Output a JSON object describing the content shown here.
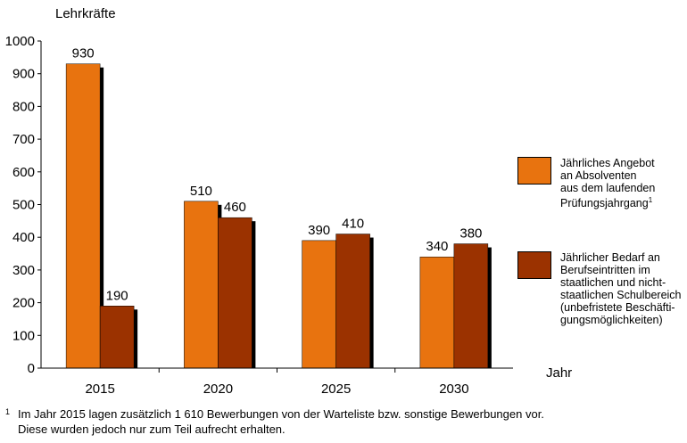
{
  "chart_data": {
    "type": "bar",
    "ylabel": "Lehrkräfte",
    "xlabel": "Jahr",
    "categories": [
      "2015",
      "2020",
      "2025",
      "2030"
    ],
    "ylim": [
      0,
      1000
    ],
    "yticks": [
      0,
      100,
      200,
      300,
      400,
      500,
      600,
      700,
      800,
      900,
      1000
    ],
    "series": [
      {
        "name": "Jährliches Angebot\nan Absolventen\naus dem laufenden\nPrüfungsjahrgang",
        "values": [
          930,
          510,
          390,
          340
        ],
        "color": "#E8730F",
        "footnote_ref": "1"
      },
      {
        "name": "Jährlicher Bedarf an\nBerufseintritten im\nstaatlichen und nicht-\nstaatlichen Schulbereich\n(unbefristete Beschäfti-\ngungsmöglichkeiten)",
        "values": [
          190,
          460,
          410,
          380
        ],
        "color": "#9B3200"
      }
    ],
    "data_labels": true,
    "grid": false,
    "legend_position": "right"
  },
  "footnote": {
    "mark": "1",
    "line1": "Im Jahr 2015 lagen zusätzlich 1 610 Bewerbungen von der Warteliste bzw. sonstige Bewerbungen vor.",
    "line2": "Diese wurden jedoch nur zum Teil aufrecht erhalten."
  }
}
